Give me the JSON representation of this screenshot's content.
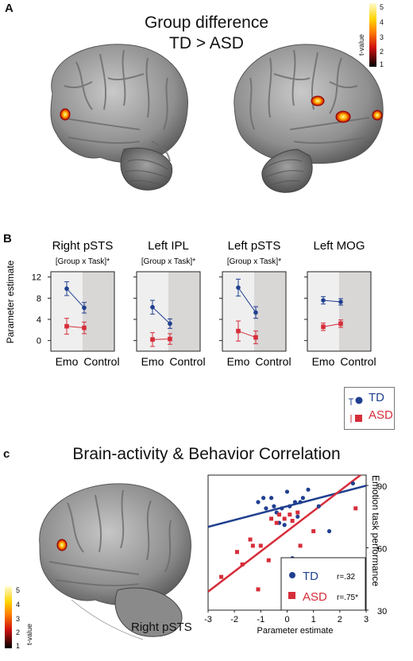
{
  "panelA": {
    "letter": "A",
    "title_line1": "Group difference",
    "title_line2": "TD > ASD",
    "colorbar": {
      "label": "t-value",
      "ticks": [
        "5",
        "4",
        "3",
        "2",
        "1"
      ]
    }
  },
  "panelB": {
    "letter": "B",
    "ylabel": "Parameter estimate",
    "yticks": [
      "12",
      "8",
      "4",
      "0"
    ],
    "xtick_emo": "Emo",
    "xtick_control": "Control",
    "legend": {
      "td": "TD",
      "asd": "ASD"
    }
  },
  "panelC": {
    "letter": "c",
    "title": "Brain-activity & Behavior Correlation",
    "region_label": "Right pSTS",
    "colorbar": {
      "label": "t-value",
      "ticks": [
        "5",
        "4",
        "3",
        "2",
        "1"
      ]
    }
  },
  "chart_data": [
    {
      "type": "line",
      "title": "Right pSTS",
      "annotation": "[Group x Task]*",
      "categories": [
        "Emo",
        "Control"
      ],
      "ylim": [
        -2,
        13
      ],
      "series": [
        {
          "name": "TD",
          "color": "#1f3f8f",
          "values": [
            9.8,
            6.2
          ],
          "errors": [
            1.3,
            1.0
          ]
        },
        {
          "name": "ASD",
          "color": "#d62d3a",
          "values": [
            2.7,
            2.4
          ],
          "errors": [
            1.5,
            1.1
          ]
        }
      ]
    },
    {
      "type": "line",
      "title": "Left IPL",
      "annotation": "[Group x Task]*",
      "categories": [
        "Emo",
        "Control"
      ],
      "ylim": [
        -2,
        13
      ],
      "series": [
        {
          "name": "TD",
          "color": "#1f3f8f",
          "values": [
            6.3,
            3.2
          ],
          "errors": [
            1.3,
            0.9
          ]
        },
        {
          "name": "ASD",
          "color": "#d62d3a",
          "values": [
            0.2,
            0.3
          ],
          "errors": [
            1.3,
            1.0
          ]
        }
      ]
    },
    {
      "type": "line",
      "title": "Left pSTS",
      "annotation": "[Group x Task]*",
      "categories": [
        "Emo",
        "Control"
      ],
      "ylim": [
        -2,
        13
      ],
      "series": [
        {
          "name": "TD",
          "color": "#1f3f8f",
          "values": [
            10.0,
            5.3
          ],
          "errors": [
            1.6,
            1.1
          ]
        },
        {
          "name": "ASD",
          "color": "#d62d3a",
          "values": [
            1.8,
            0.6
          ],
          "errors": [
            1.9,
            1.2
          ]
        }
      ]
    },
    {
      "type": "line",
      "title": "Left MOG",
      "annotation": "",
      "categories": [
        "Emo",
        "Control"
      ],
      "ylim": [
        -2,
        13
      ],
      "series": [
        {
          "name": "TD",
          "color": "#1f3f8f",
          "values": [
            7.6,
            7.3
          ],
          "errors": [
            0.7,
            0.6
          ]
        },
        {
          "name": "ASD",
          "color": "#d62d3a",
          "values": [
            2.6,
            3.2
          ],
          "errors": [
            0.7,
            0.7
          ]
        }
      ]
    },
    {
      "type": "scatter",
      "xlabel": "Parameter estimate",
      "ylabel": "Emotion task performance",
      "xlim": [
        -3,
        3
      ],
      "ylim": [
        30,
        95
      ],
      "xticks": [
        -3,
        -2,
        -1,
        0,
        1,
        2,
        3
      ],
      "yticks": [
        30,
        60,
        90
      ],
      "legend_position": "bottom-right",
      "series": [
        {
          "name": "TD",
          "r": "r=.32",
          "color": "#1f3f8f",
          "fit": {
            "slope": 3.3,
            "intercept": 80
          },
          "points": [
            [
              -1.1,
              82
            ],
            [
              -0.9,
              84
            ],
            [
              -0.6,
              84
            ],
            [
              -0.8,
              79
            ],
            [
              -0.5,
              80
            ],
            [
              -0.4,
              77
            ],
            [
              -0.2,
              79
            ],
            [
              0.1,
              80
            ],
            [
              0.3,
              82
            ],
            [
              0.5,
              82
            ],
            [
              0.6,
              84
            ],
            [
              0.8,
              88
            ],
            [
              1.2,
              80
            ],
            [
              1.6,
              68
            ],
            [
              2.5,
              91
            ],
            [
              -0.3,
              72
            ],
            [
              -0.1,
              71
            ],
            [
              0.2,
              55
            ],
            [
              0.4,
              75
            ],
            [
              0.0,
              87
            ]
          ]
        },
        {
          "name": "ASD",
          "r": "r=.75*",
          "color": "#d62d3a",
          "fit": {
            "slope": 9.7,
            "intercept": 68
          },
          "points": [
            [
              -2.5,
              46
            ],
            [
              -1.9,
              58
            ],
            [
              -1.7,
              52
            ],
            [
              -1.4,
              64
            ],
            [
              -1.3,
              61
            ],
            [
              -1.1,
              40
            ],
            [
              -1.0,
              61
            ],
            [
              -0.7,
              54
            ],
            [
              -0.4,
              72
            ],
            [
              -0.3,
              76
            ],
            [
              -0.1,
              74
            ],
            [
              0.1,
              76
            ],
            [
              0.2,
              73
            ],
            [
              0.4,
              77
            ],
            [
              0.5,
              61
            ],
            [
              -0.6,
              74
            ],
            [
              1.0,
              68
            ],
            [
              2.6,
              79
            ]
          ]
        }
      ]
    }
  ]
}
